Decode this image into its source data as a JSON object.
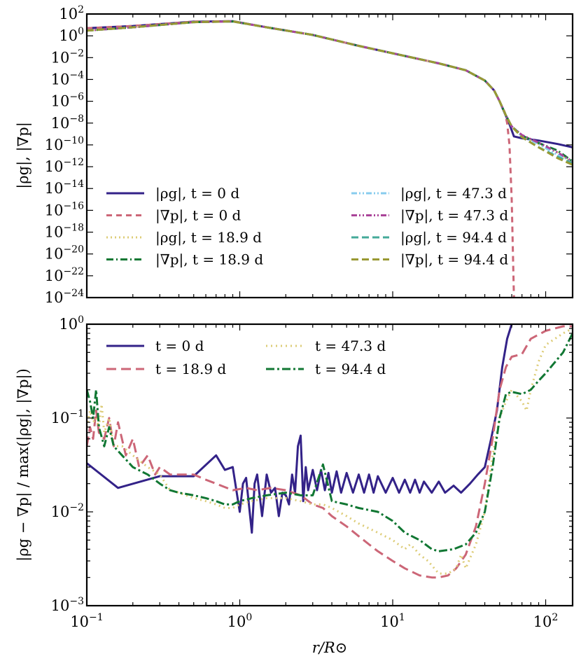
{
  "chart_data": [
    {
      "type": "line",
      "panel": "top",
      "xscale": "log",
      "yscale": "log",
      "xlim": [
        0.1,
        150
      ],
      "ylim": [
        1e-24,
        100
      ],
      "ylabel": "|ρg|, |∇p|",
      "xlabel": "",
      "legend_placement": "lower-left",
      "legend_columns": 2,
      "y_ticks": [
        "10^2",
        "10^0",
        "10^-2",
        "10^-4",
        "10^-6",
        "10^-8",
        "10^-10",
        "10^-12",
        "10^-14",
        "10^-16",
        "10^-18",
        "10^-20",
        "10^-22",
        "10^-24"
      ],
      "series": [
        {
          "name": "|ρg|, t = 0 d",
          "color": "#332288",
          "dash": "solid",
          "x": [
            0.1,
            0.2,
            0.5,
            0.9,
            1.5,
            3,
            6,
            10,
            20,
            30,
            40,
            46,
            50,
            54,
            58,
            62,
            70,
            90,
            120,
            150
          ],
          "y": [
            5,
            8,
            20,
            22,
            6,
            1.2,
            0.12,
            0.025,
            0.003,
            0.0007,
            8e-05,
            1e-05,
            1e-06,
            8e-08,
            8e-09,
            6e-10,
            4e-10,
            2.5e-10,
            1.2e-10,
            6e-11
          ]
        },
        {
          "name": "|∇p|, t = 0 d",
          "color": "#CC6677",
          "dash": "8,6",
          "x": [
            0.1,
            0.2,
            0.5,
            0.9,
            1.5,
            3,
            6,
            10,
            20,
            30,
            40,
            46,
            50,
            54,
            56,
            58,
            60,
            62
          ],
          "y": [
            5,
            8,
            20,
            22,
            6,
            1.2,
            0.12,
            0.025,
            0.003,
            0.0007,
            8e-05,
            1e-05,
            1e-06,
            1e-07,
            1e-08,
            1e-10,
            1e-15,
            1e-24
          ]
        },
        {
          "name": "|ρg|, t = 18.9 d",
          "color": "#DDCC77",
          "dash": "2,4",
          "x": [
            0.1,
            0.2,
            0.5,
            0.9,
            1.5,
            3,
            6,
            10,
            20,
            30,
            40,
            46,
            50,
            55,
            60,
            70,
            90,
            120,
            150
          ],
          "y": [
            3,
            6,
            18,
            21,
            6,
            1.2,
            0.12,
            0.025,
            0.003,
            0.0007,
            8e-05,
            1e-05,
            1e-06,
            5e-08,
            5e-09,
            6e-10,
            1.2e-10,
            2e-11,
            2e-12
          ]
        },
        {
          "name": "|∇p|, t = 18.9 d",
          "color": "#117733",
          "dash": "10,4,2,4",
          "x": [
            0.1,
            0.2,
            0.5,
            0.9,
            1.5,
            3,
            6,
            10,
            20,
            30,
            40,
            46,
            50,
            55,
            60,
            70,
            90,
            120,
            150
          ],
          "y": [
            3,
            6,
            18,
            21,
            6,
            1.2,
            0.12,
            0.025,
            0.003,
            0.0007,
            8e-05,
            1e-05,
            1e-06,
            5e-08,
            5e-09,
            7e-10,
            1.5e-10,
            3e-11,
            3e-12
          ]
        },
        {
          "name": "|ρg|, t = 47.3 d",
          "color": "#88CCEE",
          "dash": "8,3,2,3,2,3",
          "x": [
            0.1,
            0.2,
            0.5,
            0.9,
            1.5,
            3,
            6,
            10,
            20,
            30,
            40,
            46,
            50,
            55,
            60,
            70,
            90,
            120,
            150
          ],
          "y": [
            3,
            6,
            18,
            21,
            6,
            1.2,
            0.12,
            0.025,
            0.003,
            0.0007,
            8e-05,
            1e-05,
            1e-06,
            5e-08,
            5e-09,
            6e-10,
            1.2e-10,
            1.2e-11,
            3e-12
          ]
        },
        {
          "name": "|∇p|, t = 47.3 d",
          "color": "#AA4499",
          "dash": "8,3,2,3,2,3",
          "x": [
            0.1,
            0.2,
            0.5,
            0.9,
            1.5,
            3,
            6,
            10,
            20,
            30,
            40,
            46,
            50,
            55,
            60,
            70,
            90,
            120,
            150
          ],
          "y": [
            3,
            6,
            18,
            21,
            6,
            1.2,
            0.12,
            0.025,
            0.003,
            0.0007,
            8e-05,
            1e-05,
            1e-06,
            5e-08,
            5e-09,
            8e-10,
            1.6e-10,
            2e-11,
            3e-12
          ]
        },
        {
          "name": "|ρg|, t = 94.4 d",
          "color": "#44AA99",
          "dash": "10,5",
          "x": [
            0.1,
            0.2,
            0.5,
            0.9,
            1.5,
            3,
            6,
            10,
            20,
            30,
            40,
            46,
            50,
            55,
            60,
            70,
            90,
            120,
            150
          ],
          "y": [
            3,
            6,
            18,
            21,
            6,
            1.2,
            0.12,
            0.025,
            0.003,
            0.0007,
            8e-05,
            1e-05,
            1e-06,
            5e-08,
            5e-09,
            5e-10,
            6e-11,
            8e-12,
            2e-12
          ]
        },
        {
          "name": "|∇p|, t = 94.4 d",
          "color": "#999933",
          "dash": "10,5",
          "x": [
            0.1,
            0.2,
            0.5,
            0.9,
            1.5,
            3,
            6,
            10,
            20,
            30,
            40,
            46,
            50,
            55,
            60,
            70,
            90,
            120,
            150
          ],
          "y": [
            3,
            6,
            18,
            21,
            6,
            1.2,
            0.12,
            0.025,
            0.003,
            0.0007,
            8e-05,
            1e-05,
            1e-06,
            5e-08,
            5e-09,
            5e-10,
            6e-11,
            6e-12,
            1.5e-12
          ]
        }
      ]
    },
    {
      "type": "line",
      "panel": "bottom",
      "xscale": "log",
      "yscale": "log",
      "xlim": [
        0.1,
        150
      ],
      "ylim": [
        0.001,
        1
      ],
      "xlabel": "r/R⊙",
      "ylabel": "|ρg − ∇p| / max(|ρg|, |∇p|)",
      "legend_placement": "upper-left",
      "legend_columns": 2,
      "x_ticks": [
        "10^-1",
        "10^0",
        "10^1",
        "10^2"
      ],
      "y_ticks": [
        "10^0",
        "10^-1",
        "10^-2",
        "10^-3"
      ],
      "series": [
        {
          "name": "t = 0 d",
          "color": "#332288",
          "dash": "solid",
          "x": [
            0.1,
            0.16,
            0.3,
            0.5,
            0.7,
            0.8,
            0.9,
            1.0,
            1.05,
            1.1,
            1.2,
            1.25,
            1.3,
            1.4,
            1.5,
            1.6,
            1.7,
            1.8,
            1.9,
            2.0,
            2.1,
            2.2,
            2.3,
            2.4,
            2.5,
            2.6,
            2.7,
            2.8,
            3.0,
            3.2,
            3.4,
            3.6,
            3.8,
            4.0,
            4.3,
            4.6,
            5,
            5.5,
            6,
            6.5,
            7,
            7.5,
            8,
            9,
            10,
            11,
            12,
            13,
            14,
            15,
            16,
            18,
            20,
            22,
            25,
            28,
            32,
            36,
            40,
            44,
            48,
            52,
            56,
            60
          ],
          "y": [
            0.033,
            0.018,
            0.024,
            0.024,
            0.04,
            0.028,
            0.03,
            0.01,
            0.02,
            0.023,
            0.006,
            0.02,
            0.025,
            0.009,
            0.025,
            0.016,
            0.018,
            0.009,
            0.016,
            0.015,
            0.012,
            0.025,
            0.016,
            0.05,
            0.065,
            0.013,
            0.03,
            0.017,
            0.028,
            0.017,
            0.028,
            0.017,
            0.026,
            0.016,
            0.027,
            0.016,
            0.026,
            0.016,
            0.025,
            0.016,
            0.025,
            0.016,
            0.024,
            0.016,
            0.023,
            0.016,
            0.022,
            0.016,
            0.022,
            0.016,
            0.021,
            0.016,
            0.021,
            0.016,
            0.019,
            0.016,
            0.02,
            0.025,
            0.03,
            0.06,
            0.12,
            0.35,
            0.7,
            1.0
          ]
        },
        {
          "name": "t = 18.9 d",
          "color": "#CC6677",
          "dash": "14,7",
          "x": [
            0.1,
            0.105,
            0.11,
            0.115,
            0.12,
            0.13,
            0.14,
            0.15,
            0.16,
            0.18,
            0.2,
            0.22,
            0.25,
            0.28,
            0.3,
            0.35,
            0.4,
            0.5,
            0.6,
            0.7,
            0.9,
            1.1,
            1.3,
            1.6,
            2,
            2.5,
            3,
            3.5,
            4,
            5,
            6,
            7,
            8,
            10,
            12,
            15,
            18,
            20,
            23,
            26,
            30,
            35,
            40,
            45,
            50,
            55,
            60,
            70,
            80,
            100,
            130,
            150
          ],
          "y": [
            0.05,
            0.08,
            0.06,
            0.12,
            0.07,
            0.06,
            0.1,
            0.05,
            0.09,
            0.04,
            0.06,
            0.03,
            0.04,
            0.025,
            0.03,
            0.025,
            0.025,
            0.025,
            0.022,
            0.02,
            0.017,
            0.018,
            0.017,
            0.018,
            0.017,
            0.015,
            0.012,
            0.011,
            0.009,
            0.007,
            0.0055,
            0.0045,
            0.0038,
            0.003,
            0.0025,
            0.0021,
            0.002,
            0.002,
            0.0021,
            0.0025,
            0.0035,
            0.007,
            0.02,
            0.06,
            0.2,
            0.35,
            0.45,
            0.48,
            0.7,
            0.85,
            0.95,
            0.95
          ]
        },
        {
          "name": "t = 47.3 d",
          "color": "#DDCC77",
          "dash": "2,5",
          "x": [
            0.1,
            0.105,
            0.11,
            0.115,
            0.12,
            0.125,
            0.13,
            0.14,
            0.15,
            0.17,
            0.2,
            0.25,
            0.3,
            0.35,
            0.4,
            0.5,
            0.6,
            0.7,
            0.8,
            0.9,
            1.0,
            1.2,
            1.5,
            2.0,
            2.5,
            3.0,
            3.5,
            4,
            5,
            6,
            8,
            10,
            12,
            13,
            14,
            15,
            17,
            20,
            23,
            26,
            28,
            30,
            35,
            40,
            45,
            50,
            55,
            60,
            70,
            75,
            80,
            90,
            100,
            130,
            150
          ],
          "y": [
            0.08,
            0.12,
            0.09,
            0.1,
            0.08,
            0.14,
            0.07,
            0.1,
            0.05,
            0.05,
            0.04,
            0.03,
            0.025,
            0.017,
            0.016,
            0.014,
            0.013,
            0.012,
            0.011,
            0.011,
            0.012,
            0.013,
            0.014,
            0.014,
            0.013,
            0.012,
            0.012,
            0.011,
            0.009,
            0.0075,
            0.006,
            0.005,
            0.004,
            0.0045,
            0.004,
            0.0035,
            0.003,
            0.0022,
            0.0022,
            0.0025,
            0.0035,
            0.0025,
            0.0045,
            0.01,
            0.04,
            0.1,
            0.15,
            0.2,
            0.15,
            0.12,
            0.2,
            0.4,
            0.6,
            0.8,
            0.9
          ]
        },
        {
          "name": "t = 94.4 d",
          "color": "#117733",
          "dash": "12,4,3,4",
          "x": [
            0.1,
            0.105,
            0.11,
            0.115,
            0.12,
            0.13,
            0.14,
            0.15,
            0.17,
            0.2,
            0.25,
            0.3,
            0.35,
            0.4,
            0.5,
            0.6,
            0.7,
            0.8,
            0.9,
            1.0,
            1.2,
            1.5,
            2.0,
            2.5,
            3.0,
            3.5,
            4,
            5,
            6,
            8,
            10,
            12,
            15,
            18,
            20,
            25,
            30,
            35,
            40,
            45,
            50,
            55,
            60,
            70,
            80,
            90,
            100,
            130,
            150
          ],
          "y": [
            0.2,
            0.15,
            0.1,
            0.2,
            0.08,
            0.05,
            0.08,
            0.05,
            0.04,
            0.03,
            0.025,
            0.02,
            0.017,
            0.016,
            0.015,
            0.014,
            0.013,
            0.012,
            0.012,
            0.013,
            0.014,
            0.015,
            0.016,
            0.015,
            0.015,
            0.032,
            0.013,
            0.012,
            0.011,
            0.01,
            0.008,
            0.006,
            0.005,
            0.004,
            0.0038,
            0.004,
            0.0045,
            0.006,
            0.01,
            0.03,
            0.1,
            0.18,
            0.19,
            0.18,
            0.2,
            0.25,
            0.3,
            0.5,
            0.8
          ]
        }
      ]
    }
  ]
}
